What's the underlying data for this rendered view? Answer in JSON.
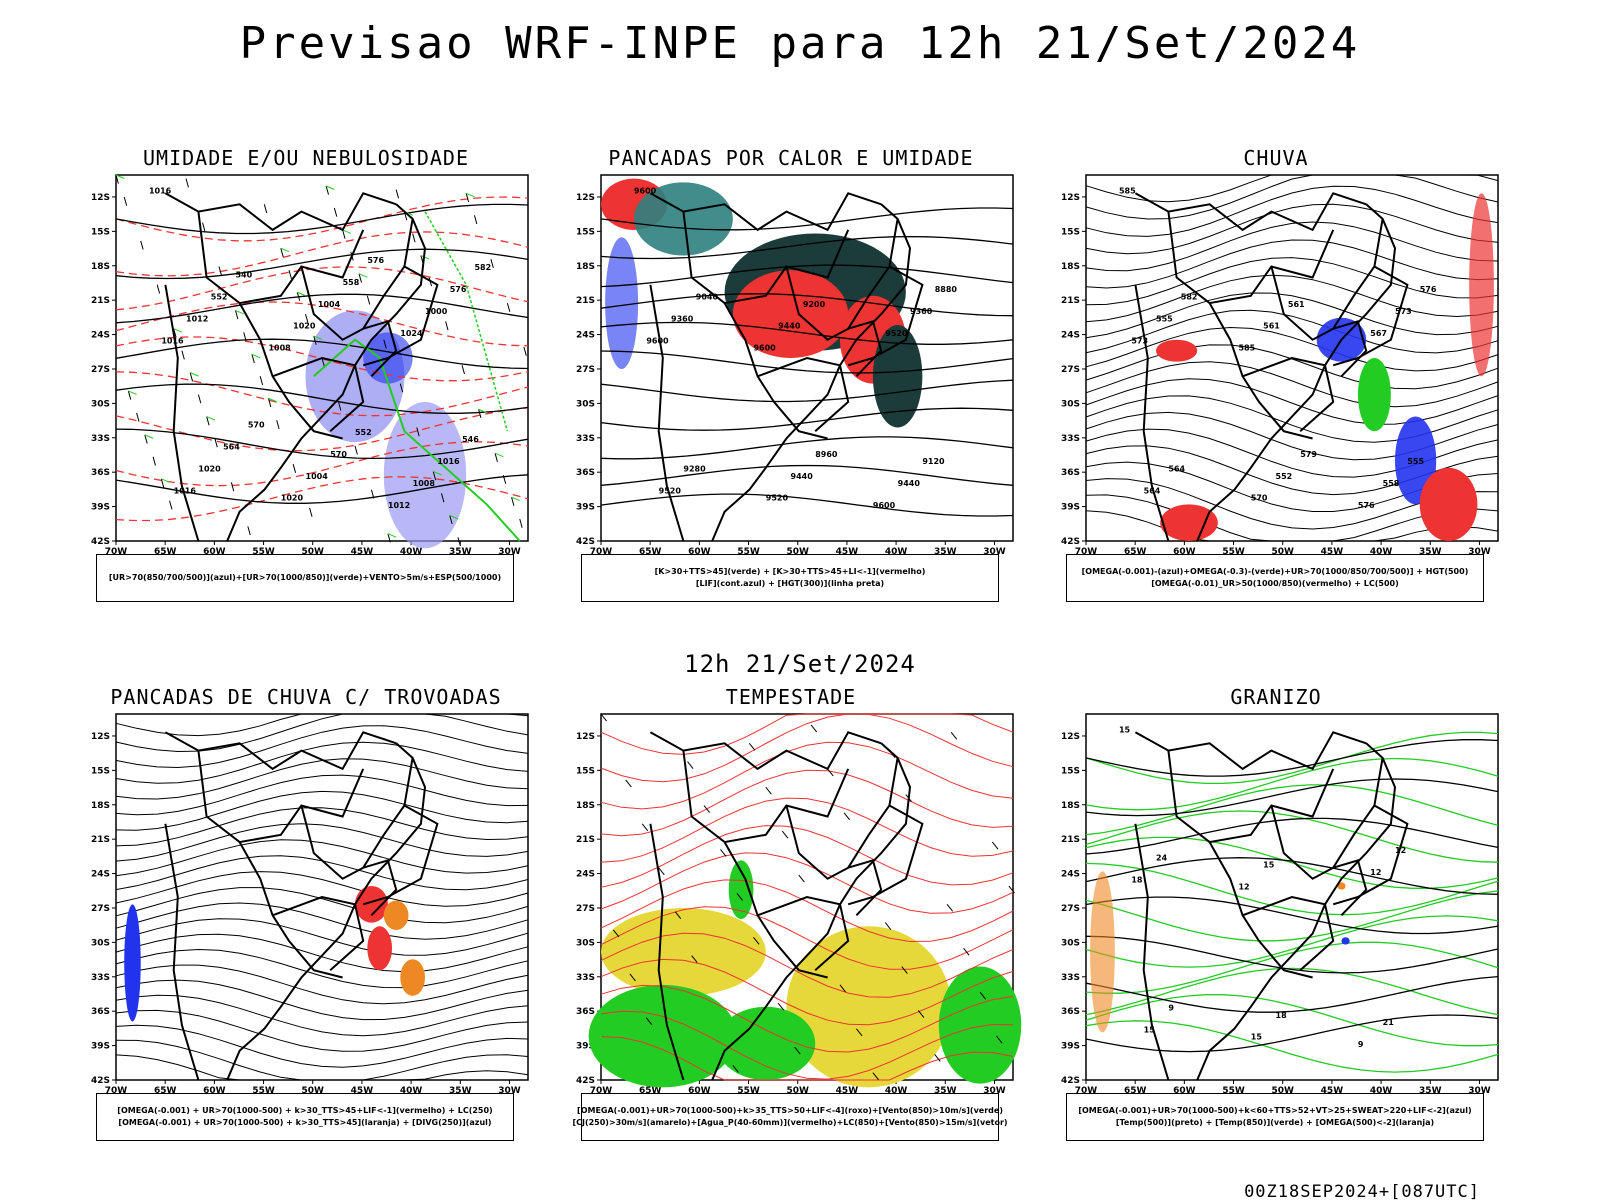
{
  "title": "Previsao WRF-INPE  para 12h 21/Set/2024",
  "subtitle": "12h 21/Set/2024",
  "footer": "00Z18SEP2024+[087UTC]",
  "axes": {
    "lat_labels": [
      "12S",
      "15S",
      "18S",
      "21S",
      "24S",
      "27S",
      "30S",
      "33S",
      "36S",
      "39S",
      "42S"
    ],
    "lon_labels": [
      "70W",
      "65W",
      "60W",
      "55W",
      "50W",
      "45W",
      "40W",
      "35W",
      "30W"
    ]
  },
  "colors": {
    "blue": "#2233ee",
    "lavender": "#9a9af2",
    "green": "#22cc22",
    "red": "#ee3333",
    "orange": "#ee8822",
    "yellow": "#e6d83a",
    "darkteal": "#1c3b3b",
    "teal": "#2e8080",
    "purple": "#9933cc"
  },
  "chart_data": [
    {
      "type": "map",
      "title": "UMIDADE E/OU NEBULOSIDADE",
      "legend": [
        "[UR>70(850/700/500)](azul)+[UR>70(1000/850)](verde)+VENTO>5m/s+ESP(500/1000)"
      ],
      "contour_labels": [
        "1016",
        "1008",
        "1012",
        "1016",
        "1020",
        "1024",
        "1016",
        "1020",
        "1008",
        "1012",
        "1004",
        "1000",
        "1020",
        "1004",
        "1016",
        "552",
        "570",
        "576",
        "564",
        "558",
        "546",
        "540",
        "552",
        "582",
        "570",
        "576"
      ]
    },
    {
      "type": "map",
      "title": "PANCADAS POR CALOR E UMIDADE",
      "legend": [
        "[K>30+TTS>45](verde) + [K>30+TTS>45+LI<-1](vermelho)",
        "[LIF](cont.azul) + [HGT(300)](linha preta)"
      ],
      "contour_labels": [
        "9600",
        "9600",
        "9600",
        "9600",
        "9520",
        "9520",
        "9520",
        "9440",
        "9440",
        "9360",
        "9440",
        "9360",
        "9280",
        "9200",
        "9120",
        "9040",
        "8960",
        "8880"
      ]
    },
    {
      "type": "map",
      "title": "CHUVA",
      "legend": [
        "[OMEGA(-0.001)-(azul)+OMEGA(-0.3)-(verde)+UR>70(1000/850/700/500)] + HGT(500)",
        "[OMEGA(-0.01)_UR>50(1000/850)(vermelho) + LC(500)"
      ],
      "contour_labels": [
        "585",
        "585",
        "576",
        "573",
        "570",
        "567",
        "564",
        "561",
        "558",
        "555",
        "552",
        "573",
        "564",
        "561",
        "555",
        "582",
        "579",
        "576"
      ]
    },
    {
      "type": "map",
      "title": "PANCADAS DE CHUVA C/ TROVOADAS",
      "legend": [
        "[OMEGA(-0.001) + UR>70(1000-500) + k>30_TTS>45+LIF<-1](vermelho) + LC(250)",
        "[OMEGA(-0.001) + UR>70(1000-500) + k>30_TTS>45](laranja) + [DIVG(250)](azul)"
      ],
      "contour_labels": []
    },
    {
      "type": "map",
      "title": "TEMPESTADE",
      "legend": [
        "[OMEGA(-0.001)+UR>70(1000-500)+k>35_TTS>50+LIF<-4](roxo)+[Vento(850)>10m/s](verde)",
        "[CJ(250)>30m/s](amarelo)+[Agua_P(40-60mm)](vermelho)+LC(850)+[Vento(850)>15m/s](vetor)"
      ],
      "contour_labels": []
    },
    {
      "type": "map",
      "title": "GRANIZO",
      "legend": [
        "[OMEGA(-0.001)+UR>70(1000-500)+k<60+TTS>52+VT>25+SWEAT>220+LIF<-2](azul)",
        "[Temp(500)](preto) + [Temp(850)](verde) + [OMEGA(500)<-2](laranja)"
      ],
      "contour_labels": [
        "15",
        "12",
        "9",
        "18",
        "15",
        "12",
        "15",
        "15",
        "21",
        "24",
        "18",
        "12",
        "9"
      ]
    }
  ]
}
